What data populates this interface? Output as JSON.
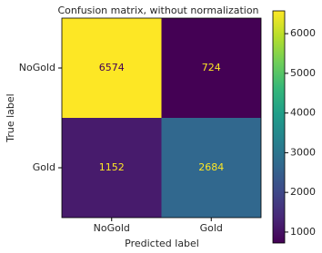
{
  "chart_data": {
    "type": "heatmap",
    "title": "Confusion matrix, without normalization",
    "xlabel": "Predicted label",
    "ylabel": "True label",
    "x_categories": [
      "NoGold",
      "Gold"
    ],
    "y_categories": [
      "NoGold",
      "Gold"
    ],
    "values": [
      [
        6574,
        724
      ],
      [
        1152,
        2684
      ]
    ],
    "colormap": "viridis",
    "clim": [
      724,
      6574
    ],
    "cticks": [
      1000,
      2000,
      3000,
      4000,
      5000,
      6000
    ]
  }
}
